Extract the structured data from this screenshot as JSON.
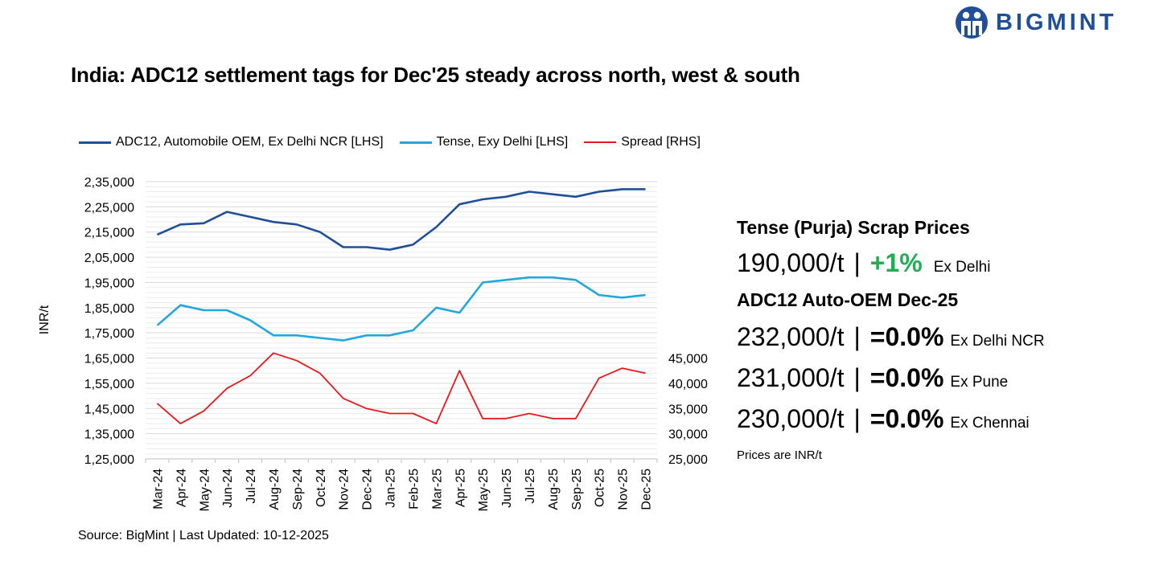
{
  "title": "India: ADC12 settlement tags for Dec'25 steady across north, west & south",
  "brand": {
    "name": "BIGMINT",
    "logo_icon": "bigmint-logo-icon",
    "color": "#1f4f96"
  },
  "legend": [
    {
      "label": "ADC12, Automobile OEM, Ex Delhi NCR [LHS]",
      "color": "#1f4f96"
    },
    {
      "label": "Tense, Exy Delhi [LHS]",
      "color": "#22a7dc"
    },
    {
      "label": "Spread [RHS]",
      "color": "#e8171c"
    }
  ],
  "chart_data": {
    "type": "line",
    "categories": [
      "Mar-24",
      "Apr-24",
      "May-24",
      "Jun-24",
      "Jul-24",
      "Aug-24",
      "Sep-24",
      "Oct-24",
      "Nov-24",
      "Dec-24",
      "Jan-25",
      "Feb-25",
      "Mar-25",
      "Apr-25",
      "May-25",
      "Jun-25",
      "Jul-25",
      "Aug-25",
      "Sep-25",
      "Oct-25",
      "Nov-25",
      "Dec-25"
    ],
    "series": [
      {
        "name": "ADC12, Automobile OEM, Ex Delhi NCR [LHS]",
        "axis": "left",
        "color": "#1f4f96",
        "values": [
          214000,
          218000,
          218500,
          223000,
          221000,
          219000,
          218000,
          215000,
          209000,
          209000,
          208000,
          210000,
          217000,
          226000,
          228000,
          229000,
          231000,
          230000,
          229000,
          231000,
          232000,
          232000
        ]
      },
      {
        "name": "Tense, Exy Delhi [LHS]",
        "axis": "left",
        "color": "#22a7dc",
        "values": [
          178000,
          186000,
          184000,
          184000,
          180000,
          174000,
          174000,
          173000,
          172000,
          174000,
          174000,
          176000,
          185000,
          183000,
          195000,
          196000,
          197000,
          197000,
          196000,
          190000,
          189000,
          190000
        ]
      },
      {
        "name": "Spread [RHS]",
        "axis": "right",
        "color": "#e8171c",
        "values": [
          36000,
          32000,
          34500,
          39000,
          41500,
          46000,
          44500,
          42000,
          37000,
          35000,
          34000,
          34000,
          32000,
          42500,
          33000,
          33000,
          34000,
          33000,
          33000,
          41000,
          43000,
          42000
        ]
      }
    ],
    "ylabel": "INR/t",
    "ylim_left": [
      125000,
      235000
    ],
    "yticks_left": [
      "1,25,000",
      "1,35,000",
      "1,45,000",
      "1,55,000",
      "1,65,000",
      "1,75,000",
      "1,85,000",
      "1,95,000",
      "2,05,000",
      "2,15,000",
      "2,25,000",
      "2,35,000"
    ],
    "ylim_right": [
      25000,
      45000
    ],
    "yticks_right": [
      "25,000",
      "30,000",
      "35,000",
      "40,000",
      "45,000"
    ],
    "grid": true,
    "legend_position": "top-left"
  },
  "source": "Source: BigMint | Last Updated: 10-12-2025",
  "panel": {
    "heading1": "Tense (Purja) Scrap Prices",
    "tense": {
      "price": "190,000/t",
      "sep": "|",
      "change": "+1%",
      "change_color": "#1fae52",
      "location": "Ex Delhi"
    },
    "heading2": "ADC12 Auto-OEM Dec-25",
    "rows": [
      {
        "price": "232,000/t",
        "sep": "|",
        "change": "=0.0%",
        "location": "Ex Delhi NCR"
      },
      {
        "price": "231,000/t",
        "sep": "|",
        "change": "=0.0%",
        "location": "Ex Pune"
      },
      {
        "price": "230,000/t",
        "sep": "|",
        "change": "=0.0%",
        "location": "Ex Chennai"
      }
    ],
    "note": "Prices are INR/t"
  }
}
